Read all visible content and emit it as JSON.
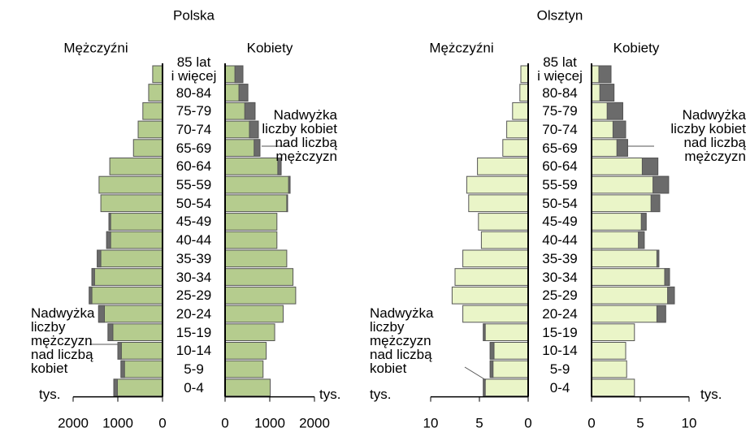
{
  "chart_data": [
    {
      "type": "population_pyramid",
      "title": "Polska",
      "categories": [
        "85 lat\ni więcej",
        "80-84",
        "75-79",
        "70-74",
        "65-69",
        "60-64",
        "55-59",
        "50-54",
        "45-49",
        "40-44",
        "35-39",
        "30-34",
        "25-29",
        "20-24",
        "15-19",
        "10-14",
        "5-9",
        "0-4"
      ],
      "series": [
        {
          "name": "Mężczyźni",
          "color": "#b5cc8e",
          "values": [
            220,
            310,
            440,
            545,
            650,
            1180,
            1420,
            1380,
            1200,
            1250,
            1460,
            1580,
            1640,
            1430,
            1220,
            1000,
            930,
            1090
          ]
        },
        {
          "name": "Kobiety",
          "color": "#b5cc8e",
          "values": [
            400,
            510,
            670,
            745,
            780,
            1255,
            1455,
            1400,
            1160,
            1160,
            1380,
            1520,
            1580,
            1300,
            1110,
            920,
            850,
            1010
          ]
        }
      ],
      "excess_color": "#6b6b6b",
      "xlim": [
        0,
        2000
      ],
      "xticks": [
        0,
        1000,
        2000
      ],
      "xlabel": "tys.",
      "annotations": [
        "Nadwyżka\nliczby kobiet\nnad liczbą\nmężczyzn",
        "Nadwyżka\nliczby\nmężczyzn\nnad liczbą\nkobiet"
      ]
    },
    {
      "type": "population_pyramid",
      "title": "Olsztyn",
      "categories": [
        "85 lat\ni więcej",
        "80-84",
        "75-79",
        "70-74",
        "65-69",
        "60-64",
        "55-59",
        "50-54",
        "45-49",
        "40-44",
        "35-39",
        "30-34",
        "25-29",
        "20-24",
        "15-19",
        "10-14",
        "5-9",
        "0-4"
      ],
      "series": [
        {
          "name": "Mężczyźni",
          "color": "#eaf5c8",
          "values": [
            0.75,
            0.85,
            1.6,
            2.2,
            2.6,
            5.2,
            6.3,
            6.1,
            5.1,
            4.8,
            6.7,
            7.5,
            7.8,
            6.7,
            4.6,
            3.9,
            3.9,
            4.6
          ]
        },
        {
          "name": "Kobiety",
          "color": "#eaf5c8",
          "values": [
            2.0,
            2.3,
            3.2,
            3.5,
            3.7,
            6.8,
            7.9,
            7.0,
            5.6,
            5.4,
            6.9,
            8.0,
            8.5,
            7.6,
            4.4,
            3.5,
            3.6,
            4.4
          ]
        }
      ],
      "excess_color": "#6b6b6b",
      "xlim": [
        0,
        10
      ],
      "xticks": [
        0,
        5,
        10
      ],
      "xlabel": "tys.",
      "annotations": [
        "Nadwyżka\nliczby kobiet\nnad liczbą\nmężczyzn",
        "Nadwyżka\nliczby\nmężczyzn\nnad liczbą\nkobiet"
      ]
    }
  ]
}
